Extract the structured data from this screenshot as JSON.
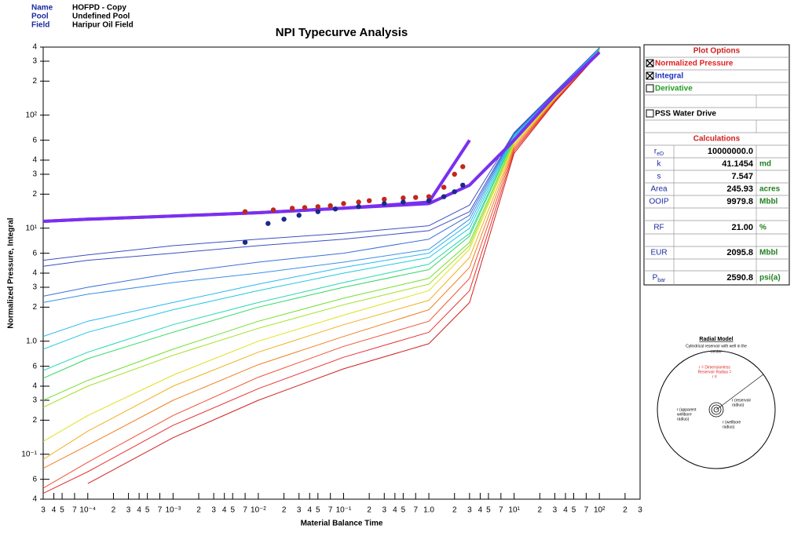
{
  "header": {
    "fields": [
      {
        "label": "Name",
        "value": "HOFPD - Copy"
      },
      {
        "label": "Pool",
        "value": "Undefined Pool"
      },
      {
        "label": "Field",
        "value": "Haripur Oil Field"
      }
    ]
  },
  "chart_data": {
    "type": "line",
    "title": "NPI Typecurve Analysis",
    "x_label": "Material Balance Time",
    "y_label": "Normalized  Pressure, Integral",
    "xscale": "log",
    "yscale": "log",
    "xlim": [
      3e-05,
      300
    ],
    "ylim": [
      0.04,
      400
    ],
    "xticks": [
      {
        "value": 3e-05,
        "label": "3"
      },
      {
        "value": 4e-05,
        "label": "4"
      },
      {
        "value": 5e-05,
        "label": "5"
      },
      {
        "value": 7e-05,
        "label": "7"
      },
      {
        "value": 0.0001,
        "label": "10⁻⁴"
      },
      {
        "value": 0.0002,
        "label": "2"
      },
      {
        "value": 0.0003,
        "label": "3"
      },
      {
        "value": 0.0004,
        "label": "4"
      },
      {
        "value": 0.0005,
        "label": "5"
      },
      {
        "value": 0.0007,
        "label": "7"
      },
      {
        "value": 0.001,
        "label": "10⁻³"
      },
      {
        "value": 0.002,
        "label": "2"
      },
      {
        "value": 0.003,
        "label": "3"
      },
      {
        "value": 0.004,
        "label": "4"
      },
      {
        "value": 0.005,
        "label": "5"
      },
      {
        "value": 0.007,
        "label": "7"
      },
      {
        "value": 0.01,
        "label": "10⁻²"
      },
      {
        "value": 0.02,
        "label": "2"
      },
      {
        "value": 0.03,
        "label": "3"
      },
      {
        "value": 0.04,
        "label": "4"
      },
      {
        "value": 0.05,
        "label": "5"
      },
      {
        "value": 0.07,
        "label": "7"
      },
      {
        "value": 0.1,
        "label": "10⁻¹"
      },
      {
        "value": 0.2,
        "label": "2"
      },
      {
        "value": 0.3,
        "label": "3"
      },
      {
        "value": 0.4,
        "label": "4"
      },
      {
        "value": 0.5,
        "label": "5"
      },
      {
        "value": 0.7,
        "label": "7"
      },
      {
        "value": 1,
        "label": "1.0"
      },
      2,
      3,
      4,
      5,
      7,
      {
        "value": 10,
        "label": "10¹"
      },
      {
        "value": 20,
        "label": "2"
      },
      {
        "value": 30,
        "label": "3"
      },
      {
        "value": 40,
        "label": "4"
      },
      {
        "value": 50,
        "label": "5"
      },
      {
        "value": 70,
        "label": "7"
      },
      {
        "value": 100,
        "label": "10²"
      },
      {
        "value": 200,
        "label": "2"
      },
      {
        "value": 300,
        "label": "3"
      }
    ],
    "yticks": [
      {
        "value": 400,
        "label": "4"
      },
      {
        "value": 300,
        "label": "3"
      },
      {
        "value": 200,
        "label": "2"
      },
      {
        "value": 100,
        "label": "10²"
      },
      {
        "value": 60,
        "label": "6"
      },
      {
        "value": 40,
        "label": "4"
      },
      {
        "value": 30,
        "label": "3"
      },
      {
        "value": 20,
        "label": "2"
      },
      {
        "value": 10,
        "label": "10¹"
      },
      6,
      4,
      3,
      2,
      {
        "value": 1,
        "label": "1.0"
      },
      {
        "value": 0.6,
        "label": "6"
      },
      {
        "value": 0.4,
        "label": "4"
      },
      {
        "value": 0.3,
        "label": "3"
      },
      {
        "value": 0.2,
        "label": "2"
      },
      {
        "value": 0.1,
        "label": "10⁻¹"
      },
      {
        "value": 0.06,
        "label": "6"
      },
      {
        "value": 0.04,
        "label": "4"
      }
    ],
    "x": [
      3e-05,
      0.0001,
      0.001,
      0.01,
      0.1,
      1,
      3,
      10,
      30,
      100,
      300
    ],
    "series": [
      {
        "color": "#3b4fc4",
        "line_width": 1,
        "values": [
          5.2,
          5.8,
          7,
          8,
          9,
          10.5,
          16,
          70,
          160,
          395,
          null
        ]
      },
      {
        "color": "#3b4fc4",
        "line_width": 1,
        "values": [
          4.6,
          5.2,
          6,
          7,
          8,
          9.5,
          14,
          69,
          158,
          392,
          null
        ]
      },
      {
        "color": "#3a6fd8",
        "line_width": 1,
        "values": [
          2.5,
          3,
          4,
          5,
          6,
          8,
          13,
          68,
          156,
          390,
          null
        ]
      },
      {
        "color": "#3a8fe8",
        "line_width": 1,
        "values": [
          2.2,
          2.6,
          3.3,
          4,
          5,
          6.5,
          12,
          67,
          154,
          388,
          null
        ]
      },
      {
        "color": "#28b8f0",
        "line_width": 1,
        "values": [
          1.1,
          1.5,
          2.2,
          3.2,
          4.5,
          6,
          11,
          66,
          152,
          385,
          null
        ]
      },
      {
        "color": "#22c8e0",
        "line_width": 1,
        "values": [
          0.85,
          1.2,
          1.9,
          2.8,
          4,
          5.5,
          10,
          65,
          150,
          382,
          null
        ]
      },
      {
        "color": "#22d8b0",
        "line_width": 1,
        "values": [
          0.55,
          0.8,
          1.4,
          2.2,
          3.3,
          4.8,
          9,
          64,
          148,
          380,
          null
        ]
      },
      {
        "color": "#30d860",
        "line_width": 1,
        "values": [
          0.47,
          0.7,
          1.2,
          2,
          3,
          4.3,
          8.5,
          62,
          146,
          378,
          null
        ]
      },
      {
        "color": "#70e030",
        "line_width": 1,
        "values": [
          0.3,
          0.45,
          0.85,
          1.5,
          2.4,
          3.6,
          7.5,
          60,
          144,
          375,
          null
        ]
      },
      {
        "color": "#a0e020",
        "line_width": 1,
        "values": [
          0.26,
          0.4,
          0.75,
          1.3,
          2.1,
          3.2,
          7,
          58,
          142,
          372,
          null
        ]
      },
      {
        "color": "#e0e020",
        "line_width": 1,
        "values": [
          0.13,
          0.22,
          0.5,
          1,
          1.7,
          2.8,
          6.5,
          56,
          140,
          370,
          null
        ]
      },
      {
        "color": "#f0b020",
        "line_width": 1,
        "values": [
          0.09,
          0.16,
          0.4,
          0.8,
          1.4,
          2.3,
          5.5,
          54,
          138,
          368,
          null
        ]
      },
      {
        "color": "#f08020",
        "line_width": 1,
        "values": [
          0.075,
          0.12,
          0.3,
          0.62,
          1.1,
          1.9,
          4.5,
          52,
          136,
          365,
          null
        ]
      },
      {
        "color": "#f05030",
        "line_width": 1,
        "values": [
          0.05,
          0.085,
          0.22,
          0.48,
          0.9,
          1.5,
          3.6,
          50,
          134,
          362,
          null
        ]
      },
      {
        "color": "#e83030",
        "line_width": 1,
        "values": [
          0.045,
          0.07,
          0.18,
          0.38,
          0.72,
          1.2,
          2.8,
          48,
          132,
          360,
          null
        ]
      },
      {
        "color": "#d02020",
        "line_width": 1,
        "values": [
          null,
          0.055,
          0.14,
          0.3,
          0.57,
          0.95,
          2.2,
          46,
          130,
          358,
          null
        ]
      },
      {
        "color": "#7a2ff0",
        "line_width": 4,
        "values": [
          11.5,
          12,
          12.8,
          13.7,
          15,
          17,
          60,
          null,
          null,
          null,
          null
        ]
      },
      {
        "color": "#7a2ff0",
        "line_width": 4,
        "values": [
          11.5,
          12,
          12.8,
          13.7,
          15,
          16.5,
          24,
          60,
          150,
          360,
          null
        ]
      }
    ],
    "scatter": [
      {
        "color": "#c0281c",
        "x": [
          0.007,
          0.015,
          0.025,
          0.035,
          0.05,
          0.07,
          0.1,
          0.15,
          0.2,
          0.3,
          0.5,
          0.7,
          1,
          1.5,
          2,
          2.5
        ],
        "values": [
          14,
          14.5,
          15,
          15.2,
          15.5,
          15.8,
          16.5,
          17,
          17.5,
          18,
          18.5,
          18.7,
          19,
          23,
          30,
          35
        ]
      },
      {
        "color": "#1a2a8a",
        "x": [
          0.007,
          0.013,
          0.02,
          0.03,
          0.05,
          0.08,
          0.15,
          0.3,
          0.5,
          1,
          1.5,
          2,
          2.5
        ],
        "values": [
          7.5,
          11,
          12,
          13,
          14,
          14.8,
          15.5,
          16.5,
          17,
          17.5,
          19,
          21,
          24
        ]
      }
    ]
  },
  "panel": {
    "plot_options_title": "Plot Options",
    "options": [
      {
        "label": "Normalized Pressure",
        "checked": true,
        "color": "#e02020"
      },
      {
        "label": "Integral",
        "checked": true,
        "color": "#2030c0"
      },
      {
        "label": "Derivative",
        "checked": false,
        "color": "#20a020"
      },
      {
        "label": "PSS Water Drive",
        "checked": false,
        "color": "#000000"
      }
    ],
    "calculations_title": "Calculations",
    "rows": [
      {
        "symbol": "r",
        "sub": "eD",
        "value": "10000000.0"
      },
      {
        "symbol": "k",
        "value": "41.1454",
        "unit": "md"
      },
      {
        "symbol": "s",
        "value": "7.547"
      },
      {
        "symbol": "Area",
        "value": "245.93",
        "unit": "acres"
      },
      {
        "symbol": "OOIP",
        "value": "9979.8",
        "unit": "Mbbl"
      },
      {
        "symbol": "RF",
        "value": "21.00",
        "unit": "%"
      },
      {
        "symbol": "EUR",
        "value": "2095.8",
        "unit": "Mbbl"
      },
      {
        "symbol": "P",
        "sub": "bar",
        "value": "2590.8",
        "unit": "psi(a)"
      }
    ]
  },
  "diagram": {
    "title": "Radial Model",
    "subtitle_lines": [
      "Cylindrical reservoir with well in the",
      "center"
    ],
    "red_lines": [
      "r  = Dimensionless",
      "Reservoir Radius =",
      "r /r"
    ],
    "re_label": [
      "r  (reservoir",
      "radius)"
    ],
    "rwa_label": [
      "r    (apparent",
      "wellbore",
      "radius)"
    ],
    "rw_label": [
      "r  (wellbore",
      "radius)"
    ]
  }
}
